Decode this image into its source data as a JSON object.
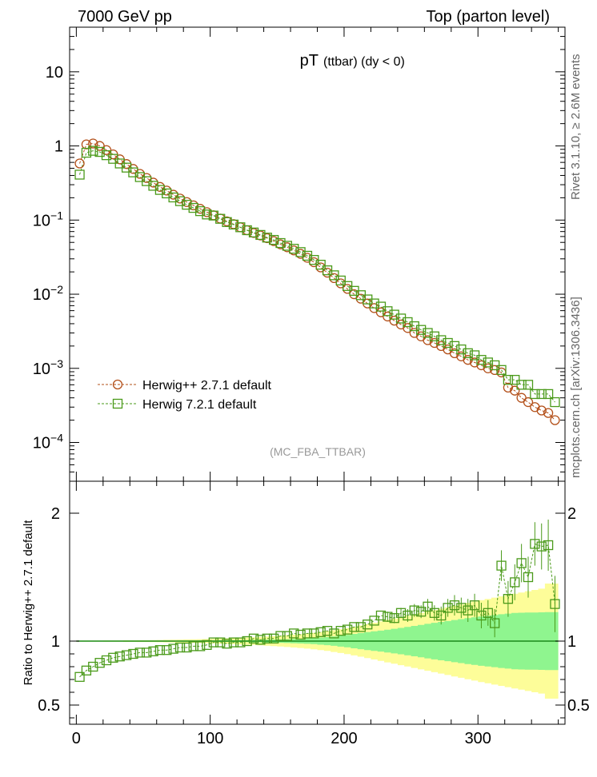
{
  "header": {
    "left": "7000 GeV pp",
    "right": "Top (parton level)"
  },
  "side_labels": {
    "rivet": "Rivet 3.1.10, ≥ 2.6M events",
    "mcplots": "mcplots.cern.ch [arXiv:1306.3436]"
  },
  "chart_data": [
    {
      "type": "scatter",
      "title": "pT (ttbar) (dy < 0)",
      "title_main": "pT",
      "title_sub": "(ttbar) (dy < 0)",
      "watermark": "(MC_FBA_TTBAR)",
      "yscale": "log",
      "ylim": [
        3e-05,
        40
      ],
      "xlim": [
        -5,
        365
      ],
      "yticks": [
        {
          "value": 10,
          "label": "10"
        },
        {
          "value": 1,
          "label": "1"
        },
        {
          "value": 0.1,
          "label": "10",
          "sup": "−1"
        },
        {
          "value": 0.01,
          "label": "10",
          "sup": "−2"
        },
        {
          "value": 0.001,
          "label": "10",
          "sup": "−3"
        },
        {
          "value": 0.0001,
          "label": "10",
          "sup": "−4"
        }
      ],
      "legend_position": "bottom-left",
      "series": [
        {
          "name": "Herwig++ 2.7.1 default",
          "marker": "circle",
          "color": "#b3501a",
          "x": [
            2.5,
            7.5,
            12.5,
            17.5,
            22.5,
            27.5,
            32.5,
            37.5,
            42.5,
            47.5,
            52.5,
            57.5,
            62.5,
            67.5,
            72.5,
            77.5,
            82.5,
            87.5,
            92.5,
            97.5,
            102.5,
            107.5,
            112.5,
            117.5,
            122.5,
            127.5,
            132.5,
            137.5,
            142.5,
            147.5,
            152.5,
            157.5,
            162.5,
            167.5,
            172.5,
            177.5,
            182.5,
            187.5,
            192.5,
            197.5,
            202.5,
            207.5,
            212.5,
            217.5,
            222.5,
            227.5,
            232.5,
            237.5,
            242.5,
            247.5,
            252.5,
            257.5,
            262.5,
            267.5,
            272.5,
            277.5,
            282.5,
            287.5,
            292.5,
            297.5,
            302.5,
            307.5,
            312.5,
            317.5,
            322.5,
            327.5,
            332.5,
            337.5,
            342.5,
            347.5,
            352.5,
            357.5
          ],
          "y": [
            0.58,
            1.05,
            1.08,
            1.0,
            0.88,
            0.77,
            0.66,
            0.57,
            0.49,
            0.42,
            0.37,
            0.32,
            0.28,
            0.25,
            0.22,
            0.195,
            0.175,
            0.158,
            0.142,
            0.128,
            0.116,
            0.105,
            0.096,
            0.088,
            0.08,
            0.073,
            0.067,
            0.062,
            0.057,
            0.052,
            0.047,
            0.043,
            0.039,
            0.035,
            0.031,
            0.027,
            0.023,
            0.0195,
            0.0165,
            0.014,
            0.0118,
            0.01,
            0.0087,
            0.0075,
            0.0065,
            0.0057,
            0.005,
            0.0044,
            0.0039,
            0.0035,
            0.003,
            0.0027,
            0.0024,
            0.0022,
            0.002,
            0.0018,
            0.0016,
            0.00145,
            0.0013,
            0.0012,
            0.0011,
            0.001,
            0.00095,
            0.00088,
            0.00055,
            0.0005,
            0.0004,
            0.00035,
            0.0003,
            0.00027,
            0.00025,
            0.0002
          ]
        },
        {
          "name": "Herwig 7.2.1 default",
          "marker": "square",
          "color": "#4a9a1a",
          "x": [
            2.5,
            7.5,
            12.5,
            17.5,
            22.5,
            27.5,
            32.5,
            37.5,
            42.5,
            47.5,
            52.5,
            57.5,
            62.5,
            67.5,
            72.5,
            77.5,
            82.5,
            87.5,
            92.5,
            97.5,
            102.5,
            107.5,
            112.5,
            117.5,
            122.5,
            127.5,
            132.5,
            137.5,
            142.5,
            147.5,
            152.5,
            157.5,
            162.5,
            167.5,
            172.5,
            177.5,
            182.5,
            187.5,
            192.5,
            197.5,
            202.5,
            207.5,
            212.5,
            217.5,
            222.5,
            227.5,
            232.5,
            237.5,
            242.5,
            247.5,
            252.5,
            257.5,
            262.5,
            267.5,
            272.5,
            277.5,
            282.5,
            287.5,
            292.5,
            297.5,
            302.5,
            307.5,
            312.5,
            317.5,
            322.5,
            327.5,
            332.5,
            337.5,
            342.5,
            347.5,
            352.5,
            357.5
          ],
          "y": [
            0.41,
            0.81,
            0.86,
            0.83,
            0.75,
            0.67,
            0.58,
            0.51,
            0.44,
            0.38,
            0.335,
            0.29,
            0.255,
            0.229,
            0.202,
            0.18,
            0.161,
            0.146,
            0.132,
            0.119,
            0.115,
            0.104,
            0.094,
            0.087,
            0.08,
            0.073,
            0.068,
            0.063,
            0.058,
            0.054,
            0.049,
            0.045,
            0.041,
            0.037,
            0.033,
            0.029,
            0.025,
            0.021,
            0.018,
            0.0153,
            0.0129,
            0.0111,
            0.0097,
            0.0085,
            0.0075,
            0.0068,
            0.0059,
            0.0053,
            0.0047,
            0.0042,
            0.0037,
            0.0033,
            0.003,
            0.0027,
            0.0024,
            0.0022,
            0.002,
            0.0018,
            0.0016,
            0.0015,
            0.0013,
            0.0012,
            0.0011,
            0.00095,
            0.0007,
            0.0007,
            0.0006,
            0.0006,
            0.00045,
            0.00045,
            0.00045,
            0.00035
          ]
        }
      ]
    },
    {
      "type": "scatter",
      "ylabel": "Ratio to Herwig++ 2.7.1 default",
      "ylim": [
        0.35,
        2.25
      ],
      "xlim": [
        -5,
        365
      ],
      "yticks": [
        0.5,
        1,
        2
      ],
      "xticks": [
        0,
        100,
        200,
        300
      ],
      "reference_line": 1,
      "bands": {
        "x_edges": [
          0,
          5,
          10,
          15,
          20,
          25,
          30,
          35,
          40,
          45,
          50,
          55,
          60,
          65,
          70,
          75,
          80,
          85,
          90,
          95,
          100,
          105,
          110,
          115,
          120,
          125,
          130,
          135,
          140,
          145,
          150,
          155,
          160,
          165,
          170,
          175,
          180,
          185,
          190,
          195,
          200,
          205,
          210,
          215,
          220,
          225,
          230,
          235,
          240,
          245,
          250,
          255,
          260,
          265,
          270,
          275,
          280,
          285,
          290,
          295,
          300,
          305,
          310,
          315,
          320,
          325,
          330,
          335,
          340,
          345,
          350,
          355,
          360
        ],
        "inner_lo": [
          0.998,
          0.998,
          0.998,
          0.998,
          0.998,
          0.998,
          0.998,
          0.998,
          0.998,
          0.998,
          0.997,
          0.997,
          0.997,
          0.997,
          0.997,
          0.996,
          0.996,
          0.996,
          0.995,
          0.995,
          0.995,
          0.994,
          0.994,
          0.993,
          0.992,
          0.992,
          0.991,
          0.99,
          0.989,
          0.988,
          0.987,
          0.985,
          0.983,
          0.981,
          0.979,
          0.976,
          0.972,
          0.968,
          0.963,
          0.957,
          0.951,
          0.944,
          0.937,
          0.93,
          0.924,
          0.918,
          0.911,
          0.904,
          0.897,
          0.889,
          0.881,
          0.873,
          0.865,
          0.857,
          0.85,
          0.843,
          0.835,
          0.828,
          0.82,
          0.814,
          0.807,
          0.802,
          0.796,
          0.79,
          0.785,
          0.78,
          0.778,
          0.777,
          0.776,
          0.775,
          0.774,
          0.773
        ],
        "inner_hi": [
          1.002,
          1.002,
          1.002,
          1.002,
          1.002,
          1.002,
          1.002,
          1.002,
          1.002,
          1.002,
          1.003,
          1.003,
          1.003,
          1.003,
          1.003,
          1.004,
          1.004,
          1.004,
          1.005,
          1.005,
          1.005,
          1.006,
          1.006,
          1.007,
          1.008,
          1.008,
          1.009,
          1.01,
          1.011,
          1.012,
          1.013,
          1.015,
          1.017,
          1.019,
          1.021,
          1.024,
          1.028,
          1.032,
          1.037,
          1.043,
          1.049,
          1.056,
          1.063,
          1.07,
          1.076,
          1.082,
          1.089,
          1.096,
          1.103,
          1.111,
          1.119,
          1.127,
          1.135,
          1.143,
          1.15,
          1.157,
          1.165,
          1.172,
          1.18,
          1.186,
          1.193,
          1.198,
          1.204,
          1.21,
          1.215,
          1.22,
          1.222,
          1.223,
          1.224,
          1.225,
          1.226,
          1.227
        ],
        "outer_lo": [
          0.996,
          0.996,
          0.996,
          0.996,
          0.995,
          0.995,
          0.995,
          0.994,
          0.994,
          0.993,
          0.993,
          0.992,
          0.991,
          0.99,
          0.989,
          0.988,
          0.987,
          0.986,
          0.985,
          0.984,
          0.982,
          0.98,
          0.978,
          0.976,
          0.974,
          0.972,
          0.97,
          0.967,
          0.964,
          0.961,
          0.958,
          0.954,
          0.95,
          0.946,
          0.941,
          0.936,
          0.93,
          0.923,
          0.915,
          0.907,
          0.898,
          0.888,
          0.878,
          0.867,
          0.856,
          0.845,
          0.834,
          0.823,
          0.812,
          0.801,
          0.79,
          0.779,
          0.768,
          0.757,
          0.746,
          0.735,
          0.724,
          0.713,
          0.702,
          0.691,
          0.68,
          0.67,
          0.66,
          0.65,
          0.64,
          0.63,
          0.62,
          0.61,
          0.6,
          0.59,
          0.55,
          0.55
        ],
        "outer_hi": [
          1.004,
          1.004,
          1.004,
          1.004,
          1.005,
          1.005,
          1.005,
          1.006,
          1.006,
          1.007,
          1.007,
          1.008,
          1.009,
          1.01,
          1.011,
          1.012,
          1.013,
          1.014,
          1.015,
          1.016,
          1.018,
          1.02,
          1.022,
          1.024,
          1.026,
          1.028,
          1.03,
          1.033,
          1.036,
          1.039,
          1.042,
          1.046,
          1.05,
          1.054,
          1.059,
          1.064,
          1.07,
          1.077,
          1.085,
          1.093,
          1.102,
          1.112,
          1.122,
          1.133,
          1.144,
          1.155,
          1.166,
          1.177,
          1.188,
          1.199,
          1.21,
          1.221,
          1.232,
          1.243,
          1.254,
          1.265,
          1.276,
          1.287,
          1.298,
          1.309,
          1.32,
          1.33,
          1.34,
          1.35,
          1.36,
          1.37,
          1.38,
          1.39,
          1.4,
          1.41,
          1.45,
          1.45
        ]
      },
      "inner_band_color": "#8ff58f",
      "outer_band_color": "#fdfd99",
      "series": [
        {
          "name": "Herwig 7.2.1 default",
          "marker": "square",
          "color": "#4a9a1a",
          "x": [
            2.5,
            7.5,
            12.5,
            17.5,
            22.5,
            27.5,
            32.5,
            37.5,
            42.5,
            47.5,
            52.5,
            57.5,
            62.5,
            67.5,
            72.5,
            77.5,
            82.5,
            87.5,
            92.5,
            97.5,
            102.5,
            107.5,
            112.5,
            117.5,
            122.5,
            127.5,
            132.5,
            137.5,
            142.5,
            147.5,
            152.5,
            157.5,
            162.5,
            167.5,
            172.5,
            177.5,
            182.5,
            187.5,
            192.5,
            197.5,
            202.5,
            207.5,
            212.5,
            217.5,
            222.5,
            227.5,
            232.5,
            237.5,
            242.5,
            247.5,
            252.5,
            257.5,
            262.5,
            267.5,
            272.5,
            277.5,
            282.5,
            287.5,
            292.5,
            297.5,
            302.5,
            307.5,
            312.5,
            317.5,
            322.5,
            327.5,
            332.5,
            337.5,
            342.5,
            347.5,
            352.5,
            357.5
          ],
          "y": [
            0.72,
            0.77,
            0.8,
            0.83,
            0.85,
            0.87,
            0.88,
            0.89,
            0.9,
            0.91,
            0.91,
            0.92,
            0.93,
            0.93,
            0.94,
            0.95,
            0.95,
            0.96,
            0.96,
            0.97,
            0.99,
            0.99,
            0.98,
            0.99,
            0.99,
            1.0,
            1.02,
            1.01,
            1.02,
            1.02,
            1.04,
            1.04,
            1.06,
            1.05,
            1.06,
            1.06,
            1.07,
            1.08,
            1.06,
            1.08,
            1.09,
            1.11,
            1.11,
            1.13,
            1.16,
            1.2,
            1.19,
            1.18,
            1.22,
            1.2,
            1.24,
            1.23,
            1.27,
            1.22,
            1.2,
            1.26,
            1.28,
            1.26,
            1.24,
            1.28,
            1.2,
            1.22,
            1.14,
            1.59,
            1.33,
            1.46,
            1.61,
            1.5,
            1.76,
            1.74,
            1.75,
            1.29
          ],
          "err": [
            0.01,
            0.01,
            0.01,
            0.01,
            0.01,
            0.01,
            0.01,
            0.01,
            0.01,
            0.01,
            0.01,
            0.01,
            0.01,
            0.01,
            0.01,
            0.01,
            0.01,
            0.01,
            0.01,
            0.01,
            0.01,
            0.01,
            0.01,
            0.01,
            0.01,
            0.01,
            0.01,
            0.01,
            0.01,
            0.01,
            0.01,
            0.01,
            0.02,
            0.02,
            0.02,
            0.02,
            0.02,
            0.02,
            0.02,
            0.02,
            0.02,
            0.02,
            0.03,
            0.03,
            0.03,
            0.03,
            0.04,
            0.04,
            0.04,
            0.05,
            0.05,
            0.05,
            0.06,
            0.06,
            0.07,
            0.07,
            0.08,
            0.08,
            0.09,
            0.09,
            0.1,
            0.1,
            0.11,
            0.12,
            0.14,
            0.14,
            0.15,
            0.16,
            0.17,
            0.18,
            0.2,
            0.22
          ]
        }
      ]
    }
  ]
}
